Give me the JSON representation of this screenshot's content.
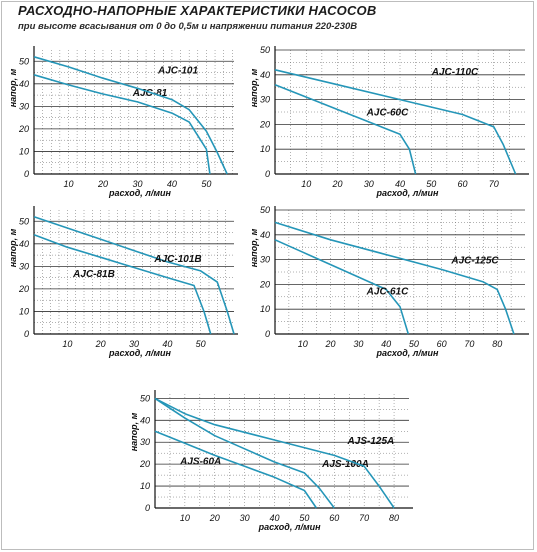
{
  "page": {
    "title": "РАСХОДНО-НАПОРНЫЕ ХАРАКТЕРИСТИКИ НАСОСОВ",
    "subtitle": "при высоте всасывания от 0 до 0,5м и напряжении питания 220-230В"
  },
  "colors": {
    "curve": "#2596b8",
    "grid": "#666666",
    "axis": "#111111"
  },
  "chart_data": [
    {
      "type": "line",
      "xlabel": "расход, л/мин",
      "ylabel": "напор, м",
      "xlim": [
        0,
        58
      ],
      "ylim": [
        0,
        55
      ],
      "xticks": [
        10,
        20,
        30,
        40,
        50
      ],
      "yticks": [
        0,
        10,
        20,
        30,
        40,
        50
      ],
      "series": [
        {
          "name": "AJC-81",
          "x": [
            0,
            10,
            20,
            30,
            40,
            45,
            50,
            51
          ],
          "y": [
            44,
            39.5,
            35.5,
            32,
            27,
            23,
            11,
            0
          ]
        },
        {
          "name": "AJC-101",
          "x": [
            0,
            10,
            20,
            30,
            40,
            45,
            50,
            53,
            56
          ],
          "y": [
            52,
            47.5,
            42.5,
            38,
            33,
            28.5,
            19,
            10,
            0
          ]
        }
      ]
    },
    {
      "type": "line",
      "xlabel": "расход, л/мин",
      "ylabel": "напор, м",
      "xlim": [
        0,
        80
      ],
      "ylim": [
        0,
        50
      ],
      "xticks": [
        10,
        20,
        30,
        40,
        50,
        60,
        70
      ],
      "yticks": [
        0,
        10,
        20,
        30,
        40,
        50
      ],
      "series": [
        {
          "name": "AJC-60C",
          "x": [
            0,
            10,
            20,
            30,
            40,
            43,
            45
          ],
          "y": [
            36,
            31,
            26,
            21,
            16,
            10,
            0
          ]
        },
        {
          "name": "AJC-110C",
          "x": [
            0,
            20,
            40,
            60,
            70,
            73,
            77
          ],
          "y": [
            42,
            36,
            30,
            24,
            19,
            12,
            0
          ]
        }
      ]
    },
    {
      "type": "line",
      "xlabel": "расход, л/мин",
      "ylabel": "напор, м",
      "xlim": [
        0,
        60
      ],
      "ylim": [
        0,
        55
      ],
      "xticks": [
        10,
        20,
        30,
        40,
        50
      ],
      "yticks": [
        0,
        10,
        20,
        30,
        40,
        50
      ],
      "series": [
        {
          "name": "AJC-81B",
          "x": [
            0,
            10,
            20,
            30,
            40,
            48,
            51,
            53
          ],
          "y": [
            44,
            38.5,
            34,
            29.5,
            25,
            21.5,
            10,
            0
          ]
        },
        {
          "name": "AJC-101B",
          "x": [
            0,
            10,
            20,
            30,
            40,
            50,
            55,
            58,
            60
          ],
          "y": [
            52,
            47,
            42,
            37,
            32,
            28,
            23,
            10,
            0
          ]
        }
      ]
    },
    {
      "type": "line",
      "xlabel": "расход, л/мин",
      "ylabel": "напор, м",
      "xlim": [
        0,
        90
      ],
      "ylim": [
        0,
        50
      ],
      "xticks": [
        10,
        20,
        30,
        40,
        50,
        60,
        70,
        80
      ],
      "yticks": [
        0,
        10,
        20,
        30,
        40,
        50
      ],
      "series": [
        {
          "name": "AJC-61C",
          "x": [
            0,
            10,
            20,
            30,
            40,
            45,
            48
          ],
          "y": [
            38,
            33,
            28,
            23,
            18,
            11,
            0
          ]
        },
        {
          "name": "AJC-125C",
          "x": [
            0,
            20,
            40,
            60,
            75,
            80,
            83,
            86
          ],
          "y": [
            45,
            38,
            32,
            26,
            21,
            18,
            10,
            0
          ]
        }
      ]
    },
    {
      "type": "line",
      "xlabel": "расход, л/мин",
      "ylabel": "напор, м",
      "xlim": [
        0,
        85
      ],
      "ylim": [
        0,
        52
      ],
      "xticks": [
        10,
        20,
        30,
        40,
        50,
        60,
        70,
        80
      ],
      "yticks": [
        0,
        10,
        20,
        30,
        40,
        50
      ],
      "series": [
        {
          "name": "AJS-60A",
          "x": [
            0,
            10,
            20,
            30,
            40,
            50,
            54
          ],
          "y": [
            35,
            29.5,
            24,
            19,
            14,
            8,
            0
          ]
        },
        {
          "name": "AJS-100A",
          "x": [
            0,
            10,
            20,
            30,
            40,
            50,
            55,
            60
          ],
          "y": [
            50,
            41,
            33,
            27,
            21,
            16,
            9,
            0
          ]
        },
        {
          "name": "AJS-125A",
          "x": [
            0,
            10,
            20,
            40,
            60,
            70,
            75,
            80
          ],
          "y": [
            50,
            43,
            38,
            31,
            24,
            19,
            10,
            0
          ]
        }
      ]
    }
  ]
}
